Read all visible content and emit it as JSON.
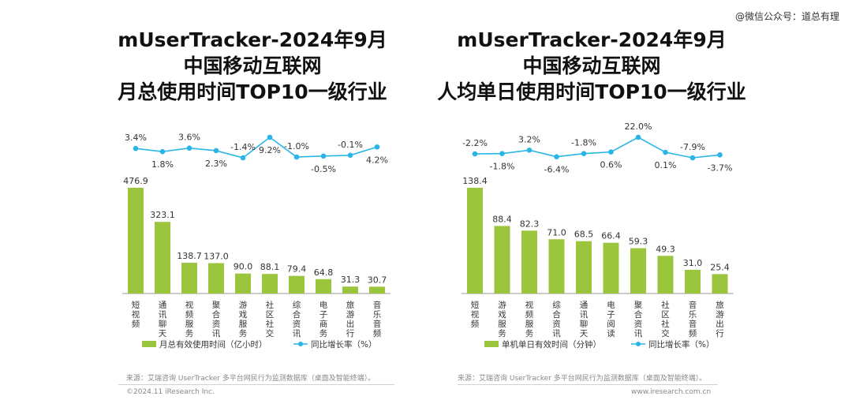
{
  "watermark": "@微信公众号：道总有理",
  "panels": [
    {
      "title_lines": [
        "mUserTracker-2024年9月",
        "中国移动互联网",
        "月总使用时间TOP10一级行业"
      ],
      "legend_bar": "月总有效使用时间（亿小时）",
      "legend_line": "同比增长率（%）",
      "source": "来源：艾瑞咨询 UserTracker 多平台网民行为监测数据库（桌面及智能终端）。",
      "copyright": "©2024.11 iResearch Inc."
    },
    {
      "title_lines": [
        "mUserTracker-2024年9月",
        "中国移动互联网",
        "人均单日使用时间TOP10一级行业"
      ],
      "legend_bar": "单机单日有效时间（分钟）",
      "legend_line": "同比增长率（%）",
      "source": "来源：艾瑞咨询 UserTracker 多平台网民行为监测数据库（桌面及智能终端）。",
      "copyright": "www.iresearch.com.cn"
    }
  ],
  "colors": {
    "bar": "#9bc53d",
    "line": "#29b6e6"
  },
  "chart_data": [
    {
      "type": "bar",
      "categories": [
        "短视频",
        "通讯聊天",
        "视频服务",
        "聚合资讯",
        "游戏服务",
        "社区社交",
        "综合资讯",
        "电子商务",
        "旅游出行",
        "音乐音频"
      ],
      "series": [
        {
          "name": "月总有效使用时间（亿小时）",
          "type": "bar",
          "values": [
            476.9,
            323.1,
            138.7,
            137.0,
            90.0,
            88.1,
            79.4,
            64.8,
            31.3,
            30.7
          ]
        },
        {
          "name": "同比增长率（%）",
          "type": "line",
          "values": [
            3.4,
            1.8,
            3.6,
            2.3,
            -1.4,
            9.2,
            -1.0,
            -0.5,
            -0.1,
            4.2
          ]
        }
      ]
    },
    {
      "type": "bar",
      "categories": [
        "短视频",
        "游戏服务",
        "视频服务",
        "综合资讯",
        "通讯聊天",
        "电子阅读",
        "聚合资讯",
        "社区社交",
        "音乐音频",
        "旅游出行"
      ],
      "series": [
        {
          "name": "单机单日有效时间（分钟）",
          "type": "bar",
          "values": [
            138.4,
            88.4,
            82.3,
            71.0,
            68.5,
            66.4,
            59.3,
            49.3,
            31.0,
            25.4
          ]
        },
        {
          "name": "同比增长率（%）",
          "type": "line",
          "values": [
            -2.2,
            -1.8,
            3.2,
            -6.4,
            -1.8,
            0.6,
            22.0,
            0.1,
            -7.9,
            -3.7
          ]
        }
      ]
    }
  ]
}
